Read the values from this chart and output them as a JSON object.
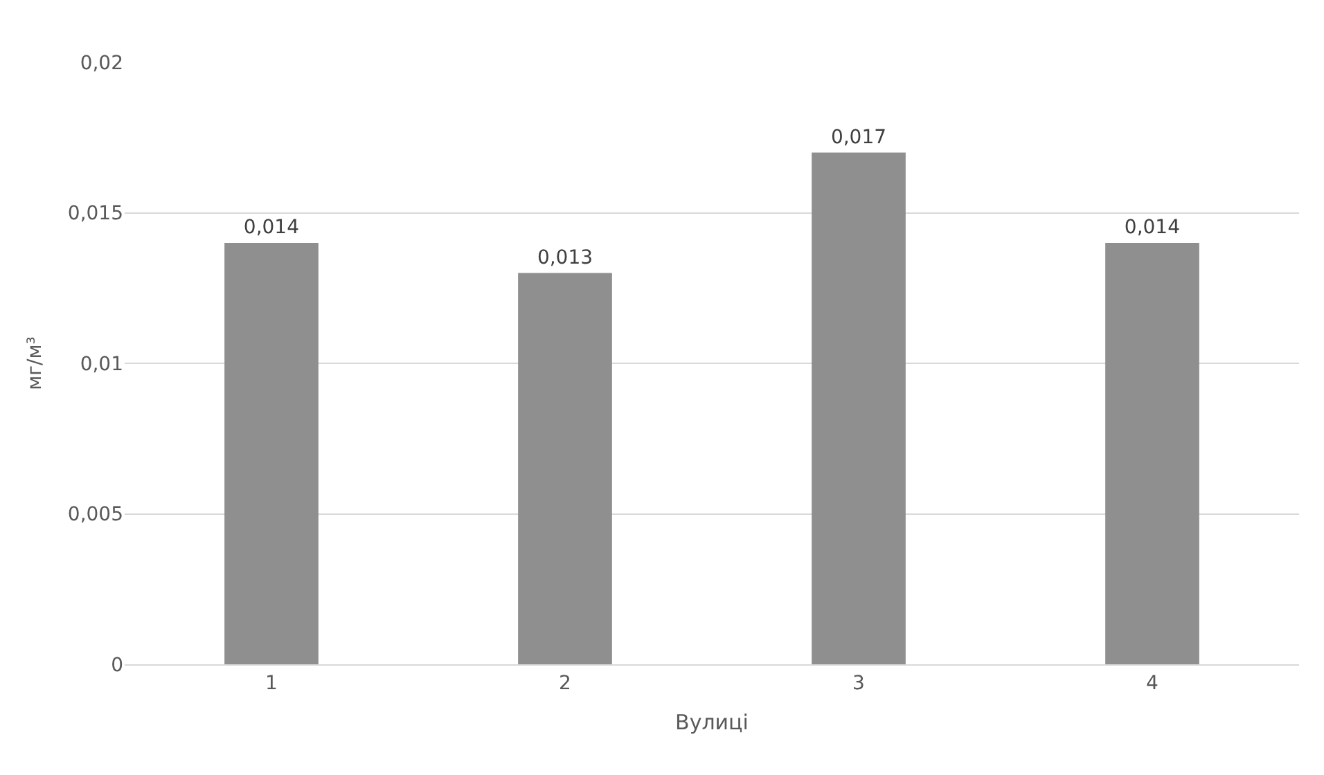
{
  "chart_data": {
    "type": "bar",
    "categories": [
      "1",
      "2",
      "3",
      "4"
    ],
    "values": [
      0.014,
      0.013,
      0.017,
      0.014
    ],
    "color": "#8f8f8f",
    "value_labels": [
      "0,014",
      "0,013",
      "0,017",
      "0,014"
    ],
    "xlabel": "Вулиці",
    "ylabel": "мг/м³",
    "ylim": [
      0,
      0.02
    ],
    "yticks": [
      {
        "value": 0,
        "label": "0"
      },
      {
        "value": 0.005,
        "label": "0,005"
      },
      {
        "value": 0.01,
        "label": "0,01"
      },
      {
        "value": 0.015,
        "label": "0,015"
      },
      {
        "value": 0.02,
        "label": "0,02"
      }
    ],
    "grid": "y"
  }
}
